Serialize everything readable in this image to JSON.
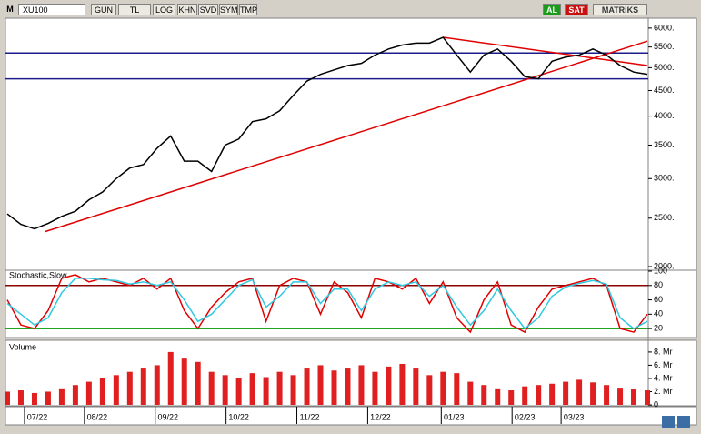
{
  "toolbar": {
    "symbol_prefix": "M",
    "symbol": "XU100",
    "buttons": [
      "GUN",
      "TL",
      "LOG",
      "KHN",
      "SVD",
      "SYM",
      "TMP"
    ],
    "buy": "AL",
    "sell": "SAT",
    "brand": "MATRiKS"
  },
  "chart_data": [
    {
      "type": "line",
      "log_scale": true,
      "color": "#000000",
      "x": [
        0,
        5,
        10,
        15,
        20,
        25,
        30,
        35,
        40,
        45,
        50,
        55,
        60,
        65,
        70,
        75,
        80,
        85,
        90,
        95,
        100,
        105,
        110,
        115,
        120,
        125,
        130,
        135,
        140,
        145,
        150,
        155,
        160,
        165,
        170,
        175,
        180,
        185,
        190,
        195,
        200,
        205,
        210,
        215,
        220,
        225,
        230,
        235
      ],
      "values": [
        2550,
        2430,
        2380,
        2440,
        2520,
        2580,
        2720,
        2820,
        3000,
        3150,
        3200,
        3450,
        3650,
        3250,
        3250,
        3100,
        3500,
        3600,
        3900,
        3950,
        4100,
        4400,
        4700,
        4850,
        4950,
        5050,
        5100,
        5300,
        5450,
        5550,
        5600,
        5600,
        5750,
        5300,
        4900,
        5300,
        5450,
        5150,
        4800,
        4750,
        5150,
        5250,
        5300,
        5450,
        5300,
        5050,
        4900,
        4850
      ],
      "xlim": [
        0,
        235
      ],
      "ylim": [
        1975,
        6280
      ],
      "yticks": [
        {
          "value": 6000,
          "label": "6000."
        },
        {
          "value": 5500,
          "label": "5500."
        },
        {
          "value": 5000,
          "label": "5000."
        },
        {
          "value": 4500,
          "label": "4500."
        },
        {
          "value": 4000,
          "label": "4000."
        },
        {
          "value": 3500,
          "label": "3500."
        },
        {
          "value": 3000,
          "label": "3000."
        },
        {
          "value": 2500,
          "label": "2500."
        },
        {
          "value": 2000,
          "label": "2000."
        }
      ],
      "hlines": [
        {
          "value": 5350,
          "color": "#1c1c8c"
        },
        {
          "value": 4750,
          "color": "#1c1c8c"
        }
      ],
      "trendlines": [
        {
          "points": [
            [
              14,
              2350
            ],
            [
              235,
              5650
            ]
          ],
          "color": "#e00000"
        },
        {
          "points": [
            [
              160,
              5750
            ],
            [
              235,
              5050
            ]
          ],
          "color": "#e00000"
        }
      ]
    },
    {
      "type": "line",
      "title": "Stochastic,Slow",
      "log_scale": false,
      "x": [
        0,
        5,
        10,
        15,
        20,
        25,
        30,
        35,
        40,
        45,
        50,
        55,
        60,
        65,
        70,
        75,
        80,
        85,
        90,
        95,
        100,
        105,
        110,
        115,
        120,
        125,
        130,
        135,
        140,
        145,
        150,
        155,
        160,
        165,
        170,
        175,
        180,
        185,
        190,
        195,
        200,
        205,
        210,
        215,
        220,
        225,
        230,
        235
      ],
      "series": [
        {
          "color": "#e00000",
          "values": [
            60,
            25,
            20,
            45,
            90,
            95,
            85,
            90,
            85,
            80,
            90,
            75,
            90,
            45,
            20,
            50,
            70,
            85,
            90,
            30,
            80,
            90,
            85,
            40,
            85,
            70,
            35,
            90,
            85,
            75,
            90,
            55,
            85,
            35,
            15,
            60,
            85,
            25,
            15,
            50,
            75,
            80,
            85,
            90,
            80,
            20,
            15,
            40
          ]
        },
        {
          "color": "#30c8e0",
          "values": [
            55,
            40,
            25,
            35,
            70,
            90,
            90,
            88,
            87,
            82,
            85,
            80,
            85,
            60,
            30,
            40,
            60,
            80,
            88,
            50,
            65,
            85,
            85,
            55,
            75,
            75,
            45,
            75,
            85,
            80,
            85,
            65,
            80,
            50,
            25,
            45,
            75,
            45,
            20,
            35,
            65,
            78,
            83,
            87,
            82,
            35,
            20,
            30
          ]
        }
      ],
      "xlim": [
        0,
        235
      ],
      "ylim": [
        10,
        100
      ],
      "yticks": [
        100,
        80,
        60,
        40,
        20
      ],
      "levels": [
        {
          "value": 80,
          "color": "#8b0000"
        },
        {
          "value": 20,
          "color": "#009900"
        }
      ]
    },
    {
      "type": "bar",
      "title": "Volume",
      "color": "#e02020",
      "x": [
        0,
        5,
        10,
        15,
        20,
        25,
        30,
        35,
        40,
        45,
        50,
        55,
        60,
        65,
        70,
        75,
        80,
        85,
        90,
        95,
        100,
        105,
        110,
        115,
        120,
        125,
        130,
        135,
        140,
        145,
        150,
        155,
        160,
        165,
        170,
        175,
        180,
        185,
        190,
        195,
        200,
        205,
        210,
        215,
        220,
        225,
        230,
        235
      ],
      "values": [
        2,
        2.2,
        1.8,
        2,
        2.5,
        3,
        3.5,
        4,
        4.5,
        5,
        5.5,
        6,
        8,
        7,
        6.5,
        5,
        4.5,
        4,
        4.8,
        4.2,
        5,
        4.5,
        5.5,
        6,
        5.2,
        5.5,
        6,
        5,
        5.8,
        6.2,
        5.5,
        4.5,
        5,
        4.8,
        3.5,
        3,
        2.5,
        2.2,
        2.8,
        3,
        3.2,
        3.5,
        3.8,
        3.4,
        3,
        2.6,
        2.4,
        2.2
      ],
      "xlim": [
        0,
        235
      ],
      "ylim": [
        0,
        9.5
      ],
      "yticks": [
        {
          "value": 8,
          "label": "8. Mr"
        },
        {
          "value": 6,
          "label": "6. Mr"
        },
        {
          "value": 4,
          "label": "4. Mr"
        },
        {
          "value": 2,
          "label": "2. Mr"
        },
        0
      ],
      "xticks": [
        {
          "value": 11,
          "label": "07/22"
        },
        {
          "value": 33,
          "label": "08/22"
        },
        {
          "value": 59,
          "label": "09/22"
        },
        {
          "value": 85,
          "label": "10/22"
        },
        {
          "value": 111,
          "label": "11/22"
        },
        {
          "value": 137,
          "label": "12/22"
        },
        {
          "value": 164,
          "label": "01/23"
        },
        {
          "value": 190,
          "label": "02/23"
        },
        {
          "value": 208,
          "label": "03/23"
        }
      ]
    }
  ]
}
